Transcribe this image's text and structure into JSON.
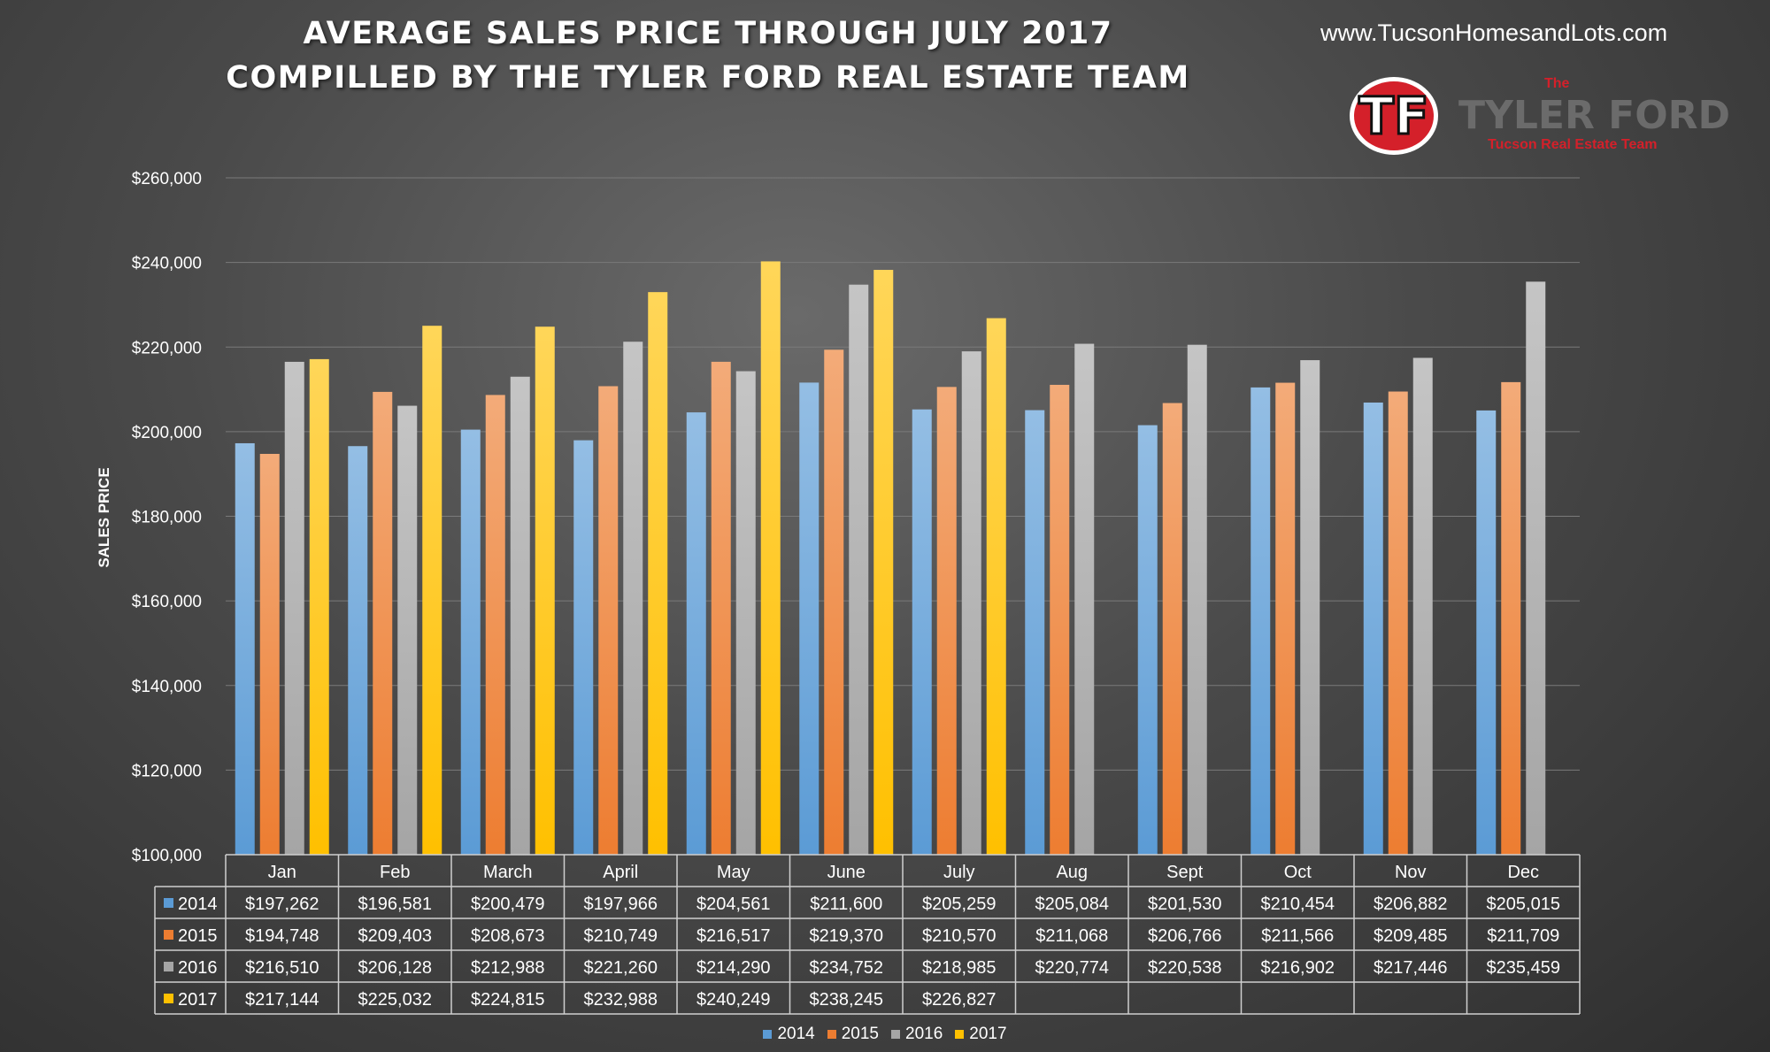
{
  "header": {
    "title_line1": "AVERAGE SALES PRICE THROUGH JULY 2017",
    "title_line2": "COMPILLED BY THE TYLER FORD REAL ESTATE TEAM",
    "website": "www.TucsonHomesandLots.com"
  },
  "logo": {
    "mark": "TF",
    "the": "The",
    "name": "TYLER FORD",
    "subtitle": "Tucson Real Estate Team"
  },
  "chart_data": {
    "type": "bar",
    "ylabel": "SALES PRICE",
    "ylim": [
      100000,
      260000
    ],
    "yticks": [
      100000,
      120000,
      140000,
      160000,
      180000,
      200000,
      220000,
      240000,
      260000
    ],
    "ytick_labels": [
      "$100,000",
      "$120,000",
      "$140,000",
      "$160,000",
      "$180,000",
      "$200,000",
      "$220,000",
      "$240,000",
      "$260,000"
    ],
    "grid": true,
    "legend_position": "bottom",
    "categories": [
      "Jan",
      "Feb",
      "March",
      "April",
      "May",
      "June",
      "July",
      "Aug",
      "Sept",
      "Oct",
      "Nov",
      "Dec"
    ],
    "series": [
      {
        "name": "2014",
        "color": "#5b9bd5",
        "values": [
          197262,
          196581,
          200479,
          197966,
          204561,
          211600,
          205259,
          205084,
          201530,
          210454,
          206882,
          205015
        ],
        "labels": [
          "$197,262",
          "$196,581",
          "$200,479",
          "$197,966",
          "$204,561",
          "$211,600",
          "$205,259",
          "$205,084",
          "$201,530",
          "$210,454",
          "$206,882",
          "$205,015"
        ]
      },
      {
        "name": "2015",
        "color": "#ed7d31",
        "values": [
          194748,
          209403,
          208673,
          210749,
          216517,
          219370,
          210570,
          211068,
          206766,
          211566,
          209485,
          211709
        ],
        "labels": [
          "$194,748",
          "$209,403",
          "$208,673",
          "$210,749",
          "$216,517",
          "$219,370",
          "$210,570",
          "$211,068",
          "$206,766",
          "$211,566",
          "$209,485",
          "$211,709"
        ]
      },
      {
        "name": "2016",
        "color": "#a5a5a5",
        "values": [
          216510,
          206128,
          212988,
          221260,
          214290,
          234752,
          218985,
          220774,
          220538,
          216902,
          217446,
          235459
        ],
        "labels": [
          "$216,510",
          "$206,128",
          "$212,988",
          "$221,260",
          "$214,290",
          "$234,752",
          "$218,985",
          "$220,774",
          "$220,538",
          "$216,902",
          "$217,446",
          "$235,459"
        ]
      },
      {
        "name": "2017",
        "color": "#ffc000",
        "values": [
          217144,
          225032,
          224815,
          232988,
          240249,
          238245,
          226827,
          null,
          null,
          null,
          null,
          null
        ],
        "labels": [
          "$217,144",
          "$225,032",
          "$224,815",
          "$232,988",
          "$240,249",
          "$238,245",
          "$226,827",
          "",
          "",
          "",
          "",
          ""
        ]
      }
    ]
  }
}
